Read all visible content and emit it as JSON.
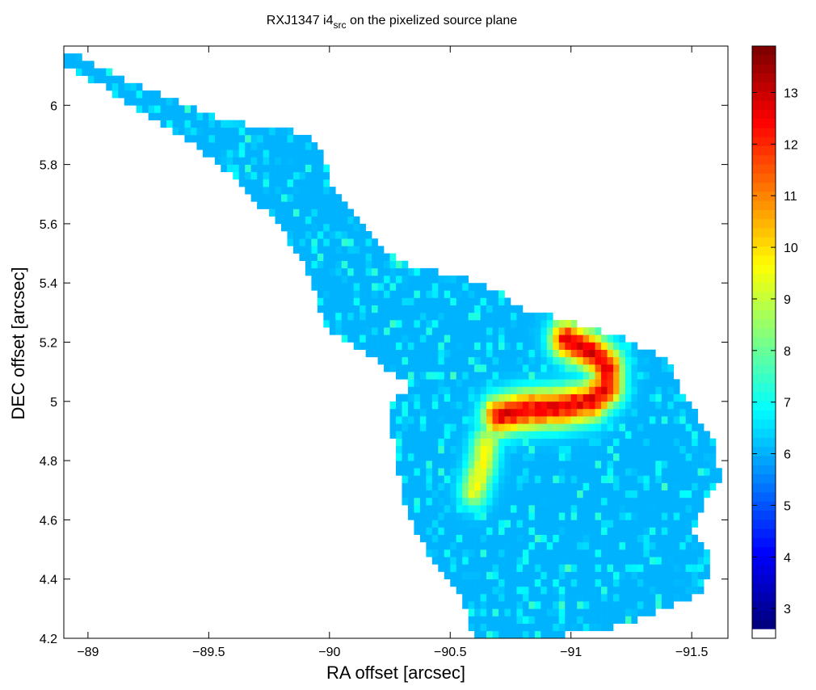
{
  "chart_data": {
    "type": "heatmap",
    "title": {
      "prefix": "RXJ1347 i4",
      "subscript": "src",
      "suffix": " on the pixelized source plane"
    },
    "xlabel": "RA offset [arcsec]",
    "ylabel": "DEC offset [arcsec]",
    "x_axis_reversed": true,
    "xlim": [
      -88.9,
      -91.65
    ],
    "ylim": [
      4.2,
      6.2
    ],
    "xticks": [
      -89,
      -89.5,
      -90,
      -90.5,
      -91,
      -91.5
    ],
    "xtick_labels": [
      "−89",
      "−89.5",
      "−90",
      "−90.5",
      "−91",
      "−91.5"
    ],
    "yticks": [
      4.2,
      4.4,
      4.6,
      4.8,
      5,
      5.2,
      5.4,
      5.6,
      5.8,
      6
    ],
    "ytick_labels": [
      "4.2",
      "4.4",
      "4.6",
      "4.8",
      "5",
      "5.2",
      "5.4",
      "5.6",
      "5.8",
      "6"
    ],
    "pixel_size_arcsec": 0.025,
    "region_boundary": {
      "top_edge": [
        [
          -88.92,
          6.19
        ],
        [
          -89.05,
          6.13
        ],
        [
          -89.25,
          6.05
        ],
        [
          -89.45,
          5.99
        ],
        [
          -89.6,
          5.94
        ],
        [
          -89.8,
          5.93
        ],
        [
          -89.95,
          5.88
        ],
        [
          -90.02,
          5.72
        ],
        [
          -90.2,
          5.53
        ],
        [
          -90.36,
          5.45
        ],
        [
          -90.55,
          5.42
        ],
        [
          -90.72,
          5.36
        ],
        [
          -90.82,
          5.3
        ],
        [
          -90.97,
          5.28
        ],
        [
          -91.2,
          5.22
        ],
        [
          -91.4,
          5.14
        ],
        [
          -91.45,
          5.05
        ],
        [
          -91.5,
          4.98
        ],
        [
          -91.6,
          4.85
        ],
        [
          -91.62,
          4.72
        ],
        [
          -91.55,
          4.65
        ],
        [
          -91.5,
          4.55
        ],
        [
          -91.58,
          4.48
        ],
        [
          -91.55,
          4.36
        ],
        [
          -91.45,
          4.32
        ],
        [
          -91.3,
          4.27
        ],
        [
          -91.1,
          4.22
        ],
        [
          -90.95,
          4.21
        ],
        [
          -90.6,
          4.2
        ]
      ],
      "bottom_edge": [
        [
          -88.9,
          6.14
        ],
        [
          -89.05,
          6.07
        ],
        [
          -89.25,
          5.96
        ],
        [
          -89.45,
          5.86
        ],
        [
          -89.65,
          5.72
        ],
        [
          -89.8,
          5.58
        ],
        [
          -89.92,
          5.42
        ],
        [
          -89.98,
          5.25
        ],
        [
          -90.15,
          5.16
        ],
        [
          -90.35,
          5.05
        ],
        [
          -90.25,
          5.0
        ],
        [
          -90.27,
          4.8
        ],
        [
          -90.33,
          4.6
        ],
        [
          -90.4,
          4.5
        ],
        [
          -90.55,
          4.34
        ],
        [
          -90.6,
          4.2
        ]
      ]
    },
    "features": [
      {
        "label": "arc",
        "points": [
          [
            -90.7,
            4.95
          ],
          [
            -90.8,
            4.97
          ],
          [
            -90.95,
            4.98
          ],
          [
            -91.08,
            5.0
          ],
          [
            -91.15,
            5.05
          ],
          [
            -91.15,
            5.12
          ],
          [
            -91.08,
            5.17
          ],
          [
            -90.98,
            5.21
          ]
        ],
        "peak_value": 13.2,
        "width_arcsec": 0.045
      },
      {
        "label": "knot",
        "points": [
          [
            -90.65,
            4.86
          ],
          [
            -90.63,
            4.78
          ],
          [
            -90.6,
            4.7
          ]
        ],
        "peak_value": 9.8,
        "width_arcsec": 0.04
      }
    ],
    "background_value_range": [
      3.0,
      7.6
    ],
    "colorbar": {
      "colormap": "jet",
      "vmin": 2.6,
      "vmax": 13.9,
      "ticks": [
        3,
        4,
        5,
        6,
        7,
        8,
        9,
        10,
        11,
        12,
        13
      ],
      "tick_labels": [
        "3",
        "4",
        "5",
        "6",
        "7",
        "8",
        "9",
        "10",
        "11",
        "12",
        "13"
      ],
      "extra_bottom_color": "#ffffff",
      "n_levels": 64,
      "placement": "right"
    },
    "grid": false
  }
}
